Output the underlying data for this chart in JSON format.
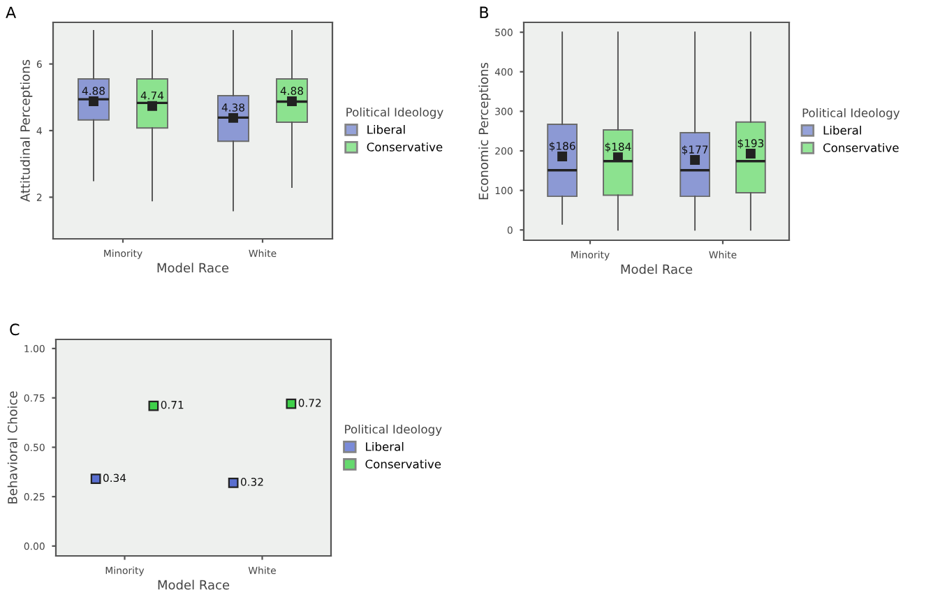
{
  "chart_data": [
    {
      "type": "box",
      "title": "A",
      "xlabel": "Model Race",
      "ylabel": "Attitudinal Perceptions",
      "legend_title": "Political Ideology",
      "legend": "right",
      "categories": [
        "Minority",
        "White"
      ],
      "ylim": [
        0.75,
        7.25
      ],
      "yticks": [
        2,
        4,
        6
      ],
      "series": [
        {
          "name": "Liberal",
          "color": "#7b8bd0",
          "boxes": [
            {
              "low": 2.5,
              "q1": 4.32,
              "median": 4.94,
              "q3": 5.55,
              "high": 7.0,
              "mean": 4.88
            },
            {
              "low": 1.6,
              "q1": 3.68,
              "median": 4.39,
              "q3": 5.05,
              "high": 7.0,
              "mean": 4.38
            }
          ],
          "value_labels": [
            "4.88",
            "4.38"
          ]
        },
        {
          "name": "Conservative",
          "color": "#7be07f",
          "boxes": [
            {
              "low": 1.9,
              "q1": 4.08,
              "median": 4.83,
              "q3": 5.55,
              "high": 7.0,
              "mean": 4.74
            },
            {
              "low": 2.3,
              "q1": 4.25,
              "median": 4.87,
              "q3": 5.55,
              "high": 7.0,
              "mean": 4.88
            }
          ],
          "value_labels": [
            "4.74",
            "4.88"
          ]
        }
      ]
    },
    {
      "type": "box",
      "title": "B",
      "xlabel": "Model Race",
      "ylabel": "Economic Perceptions",
      "legend_title": "Political Ideology",
      "legend": "right",
      "categories": [
        "Minority",
        "White"
      ],
      "ylim": [
        -26,
        525
      ],
      "yticks": [
        0,
        100,
        200,
        300,
        400,
        500
      ],
      "series": [
        {
          "name": "Liberal",
          "color": "#7b8bd0",
          "boxes": [
            {
              "low": 15,
              "q1": 85,
              "median": 151,
              "q3": 267,
              "high": 500,
              "mean": 186
            },
            {
              "low": 0,
              "q1": 85,
              "median": 151,
              "q3": 246,
              "high": 500,
              "mean": 177
            }
          ],
          "value_labels": [
            "$186",
            "$177"
          ]
        },
        {
          "name": "Conservative",
          "color": "#7be07f",
          "boxes": [
            {
              "low": 0,
              "q1": 88,
              "median": 174,
              "q3": 253,
              "high": 500,
              "mean": 184
            },
            {
              "low": 0,
              "q1": 94,
              "median": 174,
              "q3": 273,
              "high": 500,
              "mean": 193
            }
          ],
          "value_labels": [
            "$184",
            "$193"
          ]
        }
      ]
    },
    {
      "type": "scatter",
      "title": "C",
      "xlabel": "Model Race",
      "ylabel": "Behavioral Choice",
      "legend_title": "Political Ideology",
      "legend": "right",
      "categories": [
        "Minority",
        "White"
      ],
      "ylim": [
        -0.05,
        1.046
      ],
      "yticks": [
        {
          "value": 0,
          "label": "0.00"
        },
        {
          "value": 0.25,
          "label": "0.25"
        },
        {
          "value": 0.5,
          "label": "0.50"
        },
        {
          "value": 0.75,
          "label": "0.75"
        },
        {
          "value": 1,
          "label": "1.00"
        }
      ],
      "marker": "square",
      "data_labels": true,
      "series": [
        {
          "name": "Liberal",
          "color": "#5a6fd0",
          "values": [
            0.34,
            0.32
          ]
        },
        {
          "name": "Conservative",
          "color": "#3fd04a",
          "values": [
            0.71,
            0.72
          ]
        }
      ]
    }
  ]
}
